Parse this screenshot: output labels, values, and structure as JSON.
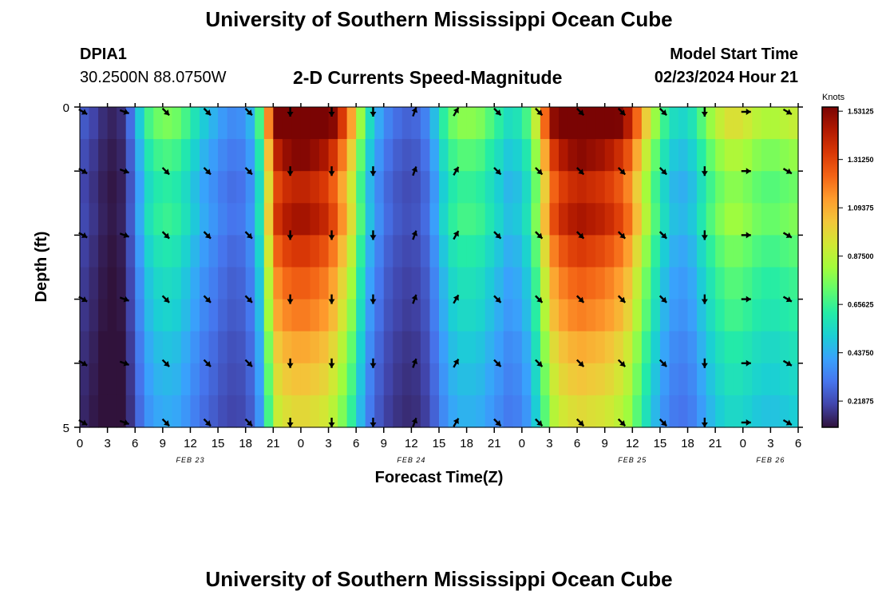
{
  "page_title": "University of Southern Mississippi Ocean Cube",
  "footer_title": "University of Southern Mississippi Ocean Cube",
  "station": {
    "id": "DPIA1",
    "coordinates": "30.2500N  88.0750W"
  },
  "plot_title": "2-D Currents Speed-Magnitude",
  "model_start": {
    "label": "Model Start Time",
    "value": "02/23/2024 Hour 21"
  },
  "colorbar": {
    "label": "Knots",
    "ticks": [
      "1.53125",
      "1.31250",
      "1.09375",
      "0.87500",
      "0.65625",
      "0.43750",
      "0.21875"
    ],
    "colors": [
      "#30123b",
      "#4145ab",
      "#4675ed",
      "#39a2fc",
      "#1bcfd4",
      "#24eca6",
      "#61fc6c",
      "#a4fc3b",
      "#d1e834",
      "#f3c63a",
      "#fe9b2d",
      "#f36315",
      "#d93806",
      "#b11901",
      "#7a0403"
    ]
  },
  "chart_data": {
    "type": "heatmap",
    "title": "2-D Currents Speed-Magnitude",
    "xlabel": "Forecast Time(Z)",
    "ylabel": "Depth (ft)",
    "y_ticks": [
      "0",
      "5"
    ],
    "ylim": [
      0,
      5
    ],
    "x_tick_labels": [
      "0",
      "3",
      "6",
      "9",
      "12",
      "15",
      "18",
      "21",
      "0",
      "3",
      "6",
      "9",
      "12",
      "15",
      "18",
      "21",
      "0",
      "3",
      "6",
      "9",
      "12",
      "15",
      "18",
      "21",
      "0",
      "3",
      "6"
    ],
    "date_labels": [
      {
        "text": "FEB 23",
        "hour": 12
      },
      {
        "text": "FEB 24",
        "hour": 36
      },
      {
        "text": "FEB 25",
        "hour": 60
      },
      {
        "text": "FEB 26",
        "hour": 75
      }
    ],
    "hour_start": 0,
    "hour_end": 78,
    "speed_range_knots": [
      0.1,
      1.55
    ],
    "depth_layers": 5,
    "speed_knots_by_hour": [
      0.22,
      0.18,
      0.14,
      0.12,
      0.14,
      0.26,
      0.45,
      0.6,
      0.66,
      0.68,
      0.66,
      0.6,
      0.52,
      0.45,
      0.4,
      0.35,
      0.32,
      0.33,
      0.4,
      0.6,
      1.05,
      1.42,
      1.5,
      1.53,
      1.53,
      1.5,
      1.46,
      1.36,
      1.2,
      1.0,
      0.72,
      0.5,
      0.38,
      0.3,
      0.26,
      0.24,
      0.25,
      0.3,
      0.42,
      0.56,
      0.66,
      0.7,
      0.7,
      0.68,
      0.62,
      0.56,
      0.5,
      0.52,
      0.6,
      0.8,
      1.1,
      1.35,
      1.45,
      1.5,
      1.52,
      1.5,
      1.48,
      1.44,
      1.38,
      1.28,
      1.1,
      0.9,
      0.72,
      0.58,
      0.5,
      0.48,
      0.52,
      0.62,
      0.72,
      0.8,
      0.85,
      0.85,
      0.82,
      0.78,
      0.76,
      0.76,
      0.78,
      0.8,
      0.8
    ],
    "depth_factors": [
      1.12,
      1.0,
      0.92,
      0.96,
      0.88,
      0.82,
      0.78,
      0.72,
      0.68,
      0.64
    ],
    "arrow_hours": [
      0,
      4.5,
      9,
      13.5,
      18,
      22.5,
      27,
      31.5,
      36,
      40.5,
      45,
      49.5,
      54,
      58.5,
      63,
      67.5,
      72,
      76.5
    ],
    "arrow_angles_deg": [
      30,
      20,
      45,
      45,
      45,
      90,
      90,
      90,
      290,
      300,
      45,
      45,
      45,
      45,
      45,
      90,
      0,
      30
    ],
    "arrow_depths": [
      0,
      1,
      2,
      3,
      4,
      5
    ]
  }
}
